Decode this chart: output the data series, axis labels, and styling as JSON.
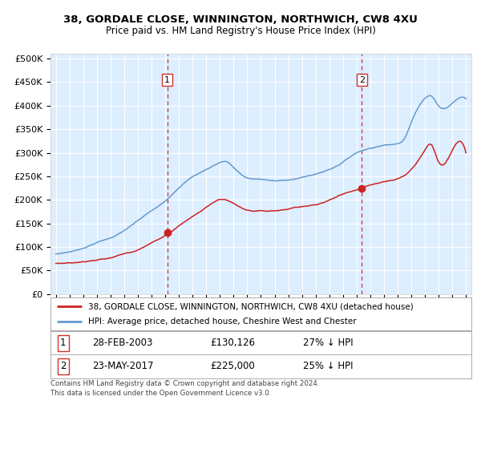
{
  "title1": "38, GORDALE CLOSE, WINNINGTON, NORTHWICH, CW8 4XU",
  "title2": "Price paid vs. HM Land Registry's House Price Index (HPI)",
  "ylabel_ticks": [
    "£0",
    "£50K",
    "£100K",
    "£150K",
    "£200K",
    "£250K",
    "£300K",
    "£350K",
    "£400K",
    "£450K",
    "£500K"
  ],
  "ytick_values": [
    0,
    50000,
    100000,
    150000,
    200000,
    250000,
    300000,
    350000,
    400000,
    450000,
    500000
  ],
  "xlim_start": 1994.6,
  "xlim_end": 2025.4,
  "ylim": [
    0,
    510000
  ],
  "background_color": "#ddeeff",
  "grid_color": "#ffffff",
  "sale1_date": 2003.15,
  "sale1_price": 130126,
  "sale2_date": 2017.39,
  "sale2_price": 225000,
  "legend_line1": "38, GORDALE CLOSE, WINNINGTON, NORTHWICH, CW8 4XU (detached house)",
  "legend_line2": "HPI: Average price, detached house, Cheshire West and Chester",
  "table_row1": [
    "1",
    "28-FEB-2003",
    "£130,126",
    "27% ↓ HPI"
  ],
  "table_row2": [
    "2",
    "23-MAY-2017",
    "£225,000",
    "25% ↓ HPI"
  ],
  "footnote": "Contains HM Land Registry data © Crown copyright and database right 2024.\nThis data is licensed under the Open Government Licence v3.0.",
  "hpi_color": "#6699cc",
  "price_color": "#cc2222",
  "dashed_color": "#cc3333"
}
